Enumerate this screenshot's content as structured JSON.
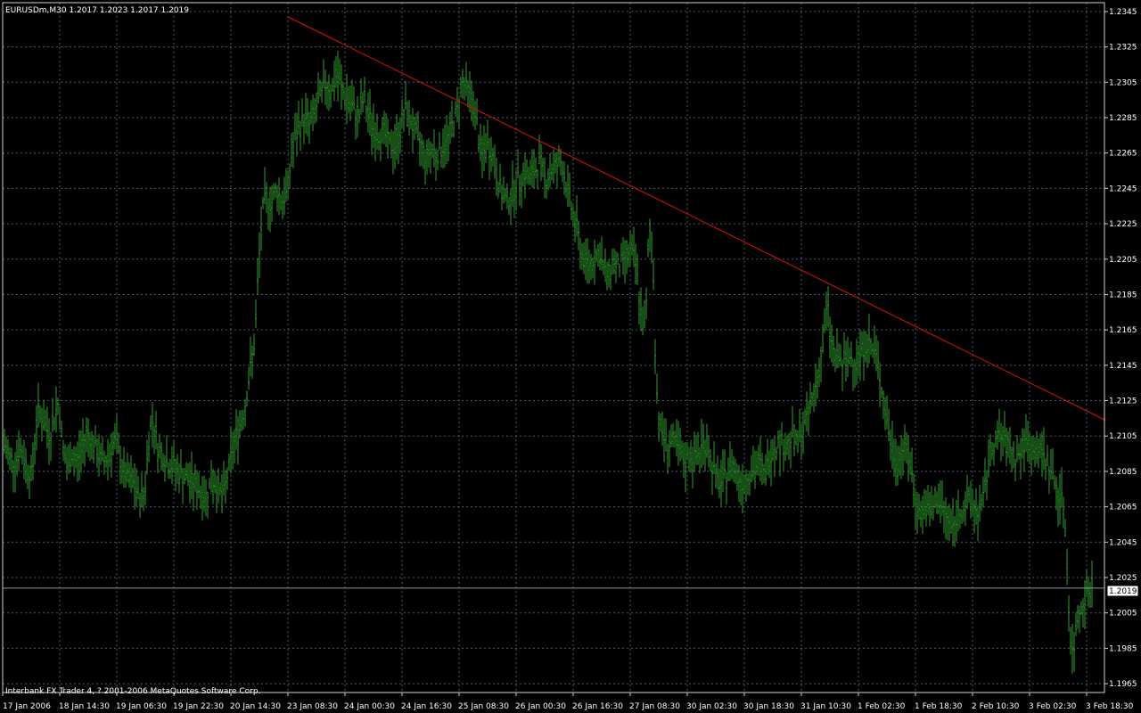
{
  "window": {
    "header_text": "EURUSDm,M30  1.2017 1.2023 1.2017 1.2019",
    "footer_text": "Interbank FX Trader 4, ? 2001-2006 MetaQuotes Software Corp."
  },
  "colors": {
    "background": "#000000",
    "grid": "#4a5a6a",
    "bars": "#2e9e2e",
    "trendline": "#e01010",
    "price_line": "#8a95a8",
    "axis_text": "#ffffff"
  },
  "chart_data": {
    "type": "ohlc",
    "symbol": "EURUSDm",
    "timeframe": "M30",
    "last_price": "1.2019",
    "ylim": [
      1.196,
      1.235
    ],
    "y_ticks": [
      "1.2345",
      "1.2325",
      "1.2305",
      "1.2285",
      "1.2265",
      "1.2245",
      "1.2225",
      "1.2205",
      "1.2185",
      "1.2165",
      "1.2145",
      "1.2125",
      "1.2105",
      "1.2085",
      "1.2065",
      "1.2045",
      "1.2025",
      "1.2005",
      "1.1985",
      "1.1965"
    ],
    "x_ticks": [
      "17 Jan 2006",
      "18 Jan 14:30",
      "19 Jan 06:30",
      "19 Jan 22:30",
      "20 Jan 14:30",
      "23 Jan 08:30",
      "24 Jan 00:30",
      "24 Jan 16:30",
      "25 Jan 08:30",
      "26 Jan 00:30",
      "26 Jan 16:30",
      "27 Jan 08:30",
      "30 Jan 02:30",
      "30 Jan 18:30",
      "31 Jan 10:30",
      "1 Feb 02:30",
      "1 Feb 18:30",
      "2 Feb 10:30",
      "3 Feb 02:30",
      "3 Feb 18:30"
    ],
    "price_path": [
      [
        0,
        1.2107
      ],
      [
        8,
        1.2095
      ],
      [
        16,
        1.209
      ],
      [
        22,
        1.2098
      ],
      [
        30,
        1.2088
      ],
      [
        36,
        1.2082
      ],
      [
        40,
        1.211
      ],
      [
        44,
        1.212
      ],
      [
        50,
        1.2112
      ],
      [
        56,
        1.2105
      ],
      [
        62,
        1.2118
      ],
      [
        66,
        1.2125
      ],
      [
        70,
        1.21
      ],
      [
        76,
        1.2085
      ],
      [
        80,
        1.2095
      ],
      [
        86,
        1.209
      ],
      [
        92,
        1.2098
      ],
      [
        98,
        1.2108
      ],
      [
        104,
        1.21
      ],
      [
        110,
        1.2095
      ],
      [
        116,
        1.209
      ],
      [
        122,
        1.2095
      ],
      [
        128,
        1.2102
      ],
      [
        132,
        1.2098
      ],
      [
        138,
        1.2085
      ],
      [
        144,
        1.208
      ],
      [
        150,
        1.2078
      ],
      [
        156,
        1.207
      ],
      [
        162,
        1.2072
      ],
      [
        168,
        1.211
      ],
      [
        172,
        1.2115
      ],
      [
        176,
        1.21
      ],
      [
        182,
        1.2095
      ],
      [
        188,
        1.209
      ],
      [
        194,
        1.2088
      ],
      [
        200,
        1.2085
      ],
      [
        206,
        1.2082
      ],
      [
        212,
        1.208
      ],
      [
        218,
        1.2078
      ],
      [
        224,
        1.2075
      ],
      [
        230,
        1.207
      ],
      [
        236,
        1.2078
      ],
      [
        240,
        1.208
      ],
      [
        246,
        1.2075
      ],
      [
        250,
        1.207
      ],
      [
        256,
        1.2085
      ],
      [
        262,
        1.21
      ],
      [
        268,
        1.211
      ],
      [
        274,
        1.212
      ],
      [
        280,
        1.214
      ],
      [
        286,
        1.216
      ],
      [
        290,
        1.22
      ],
      [
        294,
        1.223
      ],
      [
        298,
        1.224
      ],
      [
        304,
        1.2236
      ],
      [
        310,
        1.2245
      ],
      [
        316,
        1.2238
      ],
      [
        322,
        1.2242
      ],
      [
        326,
        1.226
      ],
      [
        330,
        1.2272
      ],
      [
        336,
        1.228
      ],
      [
        342,
        1.2285
      ],
      [
        348,
        1.2282
      ],
      [
        354,
        1.229
      ],
      [
        360,
        1.2298
      ],
      [
        366,
        1.2305
      ],
      [
        372,
        1.23
      ],
      [
        378,
        1.231
      ],
      [
        384,
        1.23
      ],
      [
        390,
        1.2295
      ],
      [
        396,
        1.229
      ],
      [
        402,
        1.2285
      ],
      [
        408,
        1.2296
      ],
      [
        412,
        1.2288
      ],
      [
        418,
        1.228
      ],
      [
        424,
        1.2275
      ],
      [
        430,
        1.2278
      ],
      [
        436,
        1.227
      ],
      [
        442,
        1.2268
      ],
      [
        448,
        1.2276
      ],
      [
        454,
        1.229
      ],
      [
        460,
        1.2285
      ],
      [
        466,
        1.2275
      ],
      [
        472,
        1.227
      ],
      [
        478,
        1.2262
      ],
      [
        484,
        1.2268
      ],
      [
        490,
        1.2264
      ],
      [
        496,
        1.2268
      ],
      [
        502,
        1.2272
      ],
      [
        508,
        1.2282
      ],
      [
        514,
        1.229
      ],
      [
        518,
        1.2308
      ],
      [
        522,
        1.2302
      ],
      [
        528,
        1.2298
      ],
      [
        534,
        1.2285
      ],
      [
        540,
        1.2262
      ],
      [
        546,
        1.227
      ],
      [
        552,
        1.2265
      ],
      [
        558,
        1.225
      ],
      [
        564,
        1.224
      ],
      [
        570,
        1.2238
      ],
      [
        576,
        1.2245
      ],
      [
        582,
        1.225
      ],
      [
        588,
        1.2255
      ],
      [
        594,
        1.225
      ],
      [
        600,
        1.2255
      ],
      [
        606,
        1.226
      ],
      [
        612,
        1.225
      ],
      [
        618,
        1.2255
      ],
      [
        624,
        1.2258
      ],
      [
        630,
        1.226
      ],
      [
        636,
        1.2245
      ],
      [
        642,
        1.2232
      ],
      [
        648,
        1.222
      ],
      [
        654,
        1.2205
      ],
      [
        660,
        1.2202
      ],
      [
        666,
        1.2205
      ],
      [
        672,
        1.221
      ],
      [
        676,
        1.22
      ],
      [
        682,
        1.2195
      ],
      [
        688,
        1.2205
      ],
      [
        694,
        1.22
      ],
      [
        700,
        1.2205
      ],
      [
        706,
        1.221
      ],
      [
        712,
        1.2205
      ],
      [
        716,
        1.219
      ],
      [
        720,
        1.217
      ],
      [
        724,
        1.2165
      ],
      [
        728,
        1.2222
      ],
      [
        732,
        1.2215
      ],
      [
        736,
        1.2135
      ],
      [
        740,
        1.2112
      ],
      [
        744,
        1.2105
      ],
      [
        750,
        1.21
      ],
      [
        756,
        1.2102
      ],
      [
        762,
        1.2095
      ],
      [
        768,
        1.209
      ],
      [
        774,
        1.2095
      ],
      [
        780,
        1.2092
      ],
      [
        786,
        1.2098
      ],
      [
        792,
        1.2102
      ],
      [
        798,
        1.209
      ],
      [
        804,
        1.208
      ],
      [
        810,
        1.2078
      ],
      [
        816,
        1.2085
      ],
      [
        822,
        1.209
      ],
      [
        828,
        1.2082
      ],
      [
        834,
        1.2078
      ],
      [
        840,
        1.2085
      ],
      [
        846,
        1.2085
      ],
      [
        852,
        1.209
      ],
      [
        858,
        1.2082
      ],
      [
        864,
        1.2095
      ],
      [
        870,
        1.21
      ],
      [
        876,
        1.2102
      ],
      [
        882,
        1.2098
      ],
      [
        888,
        1.2105
      ],
      [
        894,
        1.21
      ],
      [
        900,
        1.2108
      ],
      [
        906,
        1.2115
      ],
      [
        912,
        1.2128
      ],
      [
        918,
        1.214
      ],
      [
        924,
        1.216
      ],
      [
        928,
        1.218
      ],
      [
        932,
        1.216
      ],
      [
        936,
        1.215
      ],
      [
        942,
        1.2148
      ],
      [
        948,
        1.2145
      ],
      [
        954,
        1.215
      ],
      [
        960,
        1.2148
      ],
      [
        966,
        1.2152
      ],
      [
        972,
        1.2158
      ],
      [
        978,
        1.2155
      ],
      [
        984,
        1.2148
      ],
      [
        990,
        1.213
      ],
      [
        996,
        1.211
      ],
      [
        1002,
        1.2095
      ],
      [
        1008,
        1.209
      ],
      [
        1014,
        1.21
      ],
      [
        1020,
        1.2092
      ],
      [
        1026,
        1.2072
      ],
      [
        1032,
        1.206
      ],
      [
        1038,
        1.2065
      ],
      [
        1044,
        1.206
      ],
      [
        1050,
        1.207
      ],
      [
        1056,
        1.2065
      ],
      [
        1062,
        1.206
      ],
      [
        1068,
        1.2052
      ],
      [
        1074,
        1.206
      ],
      [
        1080,
        1.2065
      ],
      [
        1086,
        1.2068
      ],
      [
        1092,
        1.2065
      ],
      [
        1098,
        1.2062
      ],
      [
        1104,
        1.207
      ],
      [
        1110,
        1.2095
      ],
      [
        1116,
        1.2102
      ],
      [
        1122,
        1.2105
      ],
      [
        1128,
        1.21
      ],
      [
        1134,
        1.2098
      ],
      [
        1140,
        1.2092
      ],
      [
        1146,
        1.2098
      ],
      [
        1152,
        1.2102
      ],
      [
        1158,
        1.2095
      ],
      [
        1164,
        1.2098
      ],
      [
        1170,
        1.2094
      ],
      [
        1176,
        1.209
      ],
      [
        1182,
        1.208
      ],
      [
        1188,
        1.2072
      ],
      [
        1194,
        1.2065
      ],
      [
        1198,
        1.202
      ],
      [
        1202,
        1.198
      ],
      [
        1206,
        1.199
      ],
      [
        1210,
        1.2005
      ],
      [
        1214,
        1.2012
      ],
      [
        1218,
        1.2016
      ],
      [
        1222,
        1.2019
      ],
      [
        1226,
        1.2019
      ]
    ],
    "trendline": {
      "from": [
        323,
        1.2342
      ],
      "to": [
        1240,
        1.2114
      ]
    },
    "price_line": 1.2019
  }
}
